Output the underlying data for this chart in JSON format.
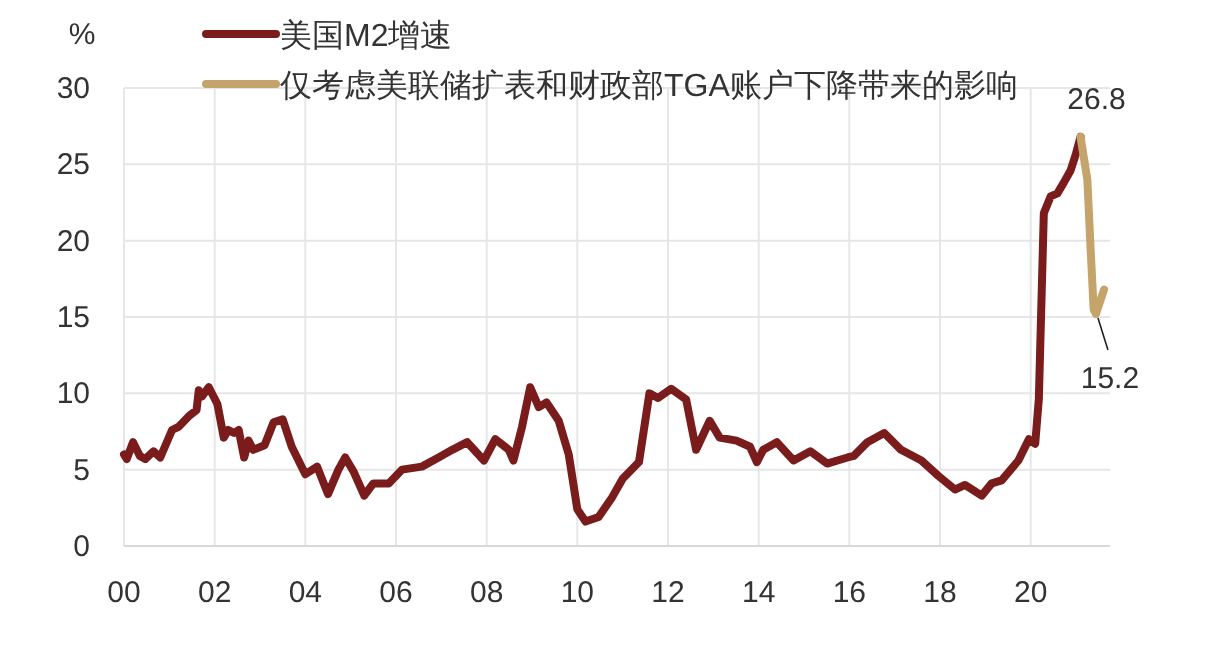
{
  "chart_data": {
    "type": "line",
    "ylabel": "%",
    "legend": "top left",
    "grid": true,
    "xlim": [
      2000,
      2021.75
    ],
    "ylim": [
      0,
      30
    ],
    "xticks": [
      {
        "value": 2000,
        "label": "00"
      },
      {
        "value": 2002,
        "label": "02"
      },
      {
        "value": 2004,
        "label": "04"
      },
      {
        "value": 2006,
        "label": "06"
      },
      {
        "value": 2008,
        "label": "08"
      },
      {
        "value": 2010,
        "label": "10"
      },
      {
        "value": 2012,
        "label": "12"
      },
      {
        "value": 2014,
        "label": "14"
      },
      {
        "value": 2016,
        "label": "16"
      },
      {
        "value": 2018,
        "label": "18"
      },
      {
        "value": 2020,
        "label": "20"
      }
    ],
    "yticks": [
      0,
      5,
      10,
      15,
      20,
      25,
      30
    ],
    "series": [
      {
        "name": "美国M2增速",
        "color": "#7b1c1c",
        "x": [
          2000,
          2000.06,
          2000.2,
          2000.35,
          2000.47,
          2000.65,
          2000.8,
          2001.06,
          2001.2,
          2001.43,
          2001.6,
          2001.65,
          2001.72,
          2001.87,
          2002.06,
          2002.2,
          2002.3,
          2002.43,
          2002.53,
          2002.65,
          2002.75,
          2002.85,
          2003.1,
          2003.3,
          2003.5,
          2003.7,
          2004,
          2004.26,
          2004.5,
          2004.73,
          2004.88,
          2005.06,
          2005.3,
          2005.5,
          2005.84,
          2006.13,
          2006.57,
          2006.94,
          2007.24,
          2007.57,
          2007.94,
          2008.19,
          2008.49,
          2008.59,
          2008.78,
          2008.96,
          2009.15,
          2009.32,
          2009.59,
          2009.81,
          2010,
          2010.18,
          2010.47,
          2010.77,
          2011,
          2011.36,
          2011.59,
          2011.78,
          2012.07,
          2012.4,
          2012.62,
          2012.92,
          2013.14,
          2013.51,
          2013.81,
          2013.96,
          2014.1,
          2014.4,
          2014.77,
          2015.14,
          2015.51,
          2015.96,
          2016.1,
          2016.4,
          2016.77,
          2017.14,
          2017.59,
          2017.96,
          2018.33,
          2018.55,
          2018.92,
          2019.14,
          2019.36,
          2019.73,
          2019.96,
          2020.1,
          2020.18,
          2020.29,
          2020.44,
          2020.59,
          2020.73,
          2020.88,
          2021,
          2021.1
        ],
        "values": [
          6.0,
          5.7,
          6.8,
          5.9,
          5.7,
          6.2,
          5.8,
          7.6,
          7.8,
          8.5,
          8.9,
          10.2,
          9.8,
          10.4,
          9.3,
          7.1,
          7.6,
          7.4,
          7.6,
          5.8,
          6.9,
          6.3,
          6.6,
          8.1,
          8.3,
          6.5,
          4.7,
          5.2,
          3.4,
          5.0,
          5.8,
          4.9,
          3.3,
          4.1,
          4.1,
          5.0,
          5.2,
          5.8,
          6.3,
          6.8,
          5.6,
          7.0,
          6.3,
          5.6,
          7.8,
          10.4,
          9.1,
          9.4,
          8.2,
          6.0,
          2.4,
          1.6,
          1.9,
          3.2,
          4.4,
          5.5,
          10.0,
          9.7,
          10.3,
          9.6,
          6.3,
          8.2,
          7.1,
          6.9,
          6.5,
          5.5,
          6.3,
          6.8,
          5.6,
          6.2,
          5.4,
          5.8,
          5.9,
          6.8,
          7.4,
          6.3,
          5.6,
          4.6,
          3.7,
          4.0,
          3.3,
          4.1,
          4.3,
          5.6,
          7.0,
          6.7,
          9.6,
          21.8,
          22.9,
          23.1,
          23.8,
          24.6,
          25.7,
          26.8
        ]
      },
      {
        "name": "仅考虑美联储扩表和财政部TGA账户下降带来的影响",
        "color": "#c4a46a",
        "x": [
          2021.1,
          2021.25,
          2021.32,
          2021.39,
          2021.44,
          2021.54,
          2021.62
        ],
        "values": [
          26.8,
          24.0,
          19.6,
          15.5,
          15.2,
          16.1,
          16.8
        ]
      }
    ],
    "annotations": [
      {
        "text": "26.8",
        "x": 2021.1,
        "y": 26.8
      },
      {
        "text": "15.2",
        "x": 2021.44,
        "y": 15.2
      }
    ]
  }
}
